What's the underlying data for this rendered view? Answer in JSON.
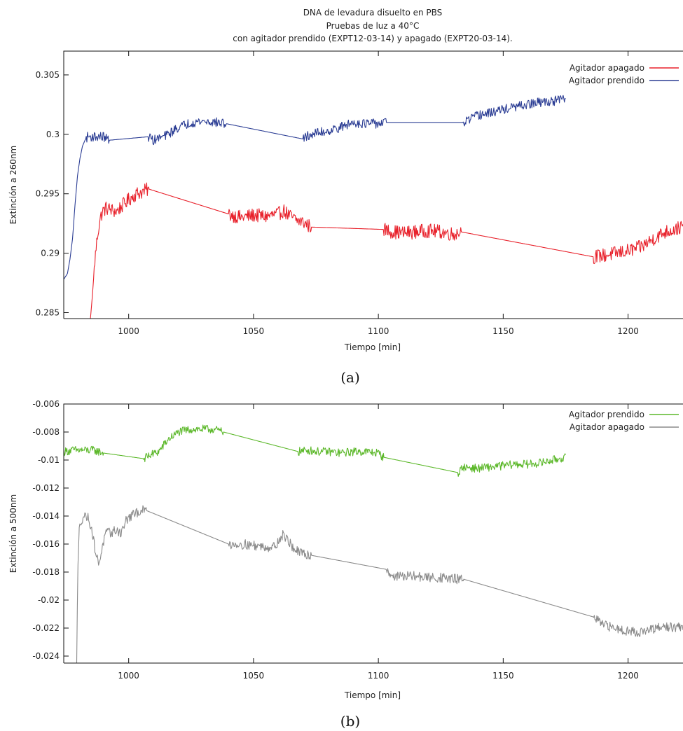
{
  "figure": {
    "title_lines": [
      "DNA de levadura disuelto en PBS",
      "Pruebas de luz a 40°C",
      "con agitador prendido (EXPT12-03-14) y apagado (EXPT20-03-14)."
    ],
    "caption_a": "(a)",
    "caption_b": "(b)"
  },
  "chart_data": [
    {
      "type": "line",
      "title": "DNA de levadura disuelto en PBS / Pruebas de luz a 40°C / con agitador prendido (EXPT12-03-14) y apagado (EXPT20-03-14).",
      "xlabel": "Tiempo [min]",
      "ylabel": "Extinción a 260nm",
      "xlim": [
        974,
        1222
      ],
      "ylim": [
        0.2845,
        0.307
      ],
      "xticks": [
        1000,
        1050,
        1100,
        1150,
        1200
      ],
      "xtick_labels": [
        "1000",
        "1050",
        "1100",
        "1150",
        "1200"
      ],
      "yticks": [
        0.285,
        0.29,
        0.295,
        0.3,
        0.305
      ],
      "ytick_labels": [
        "0.285",
        "0.29",
        "0.295",
        "0.3",
        "0.305"
      ],
      "legend_position": "top-right",
      "grid": false,
      "series": [
        {
          "name": "Agitador apagado",
          "color": "#e8202a",
          "noise": 0.0006,
          "x": [
            984.7,
            985.5,
            986.5,
            987.5,
            988.5,
            989.5,
            991,
            995,
            1000,
            1003,
            1006,
            1008,
            1040,
            1045,
            1050,
            1055,
            1060,
            1062,
            1064,
            1067,
            1070,
            1073,
            1102,
            1106,
            1110,
            1115,
            1120,
            1125,
            1130,
            1133,
            1186,
            1190,
            1195,
            1200,
            1205,
            1210,
            1215,
            1222
          ],
          "y": [
            0.2845,
            0.2865,
            0.2895,
            0.2915,
            0.2928,
            0.2935,
            0.2938,
            0.2935,
            0.2945,
            0.295,
            0.2952,
            0.2954,
            0.2933,
            0.293,
            0.2932,
            0.2931,
            0.2933,
            0.2936,
            0.2932,
            0.2928,
            0.2926,
            0.2922,
            0.292,
            0.2918,
            0.2917,
            0.2918,
            0.2919,
            0.2918,
            0.2916,
            0.2918,
            0.2897,
            0.2898,
            0.29,
            0.2902,
            0.2905,
            0.2912,
            0.2918,
            0.2922
          ],
          "noisy_ranges": [
            [
              986,
              1008
            ],
            [
              1040,
              1073
            ],
            [
              1102,
              1133
            ],
            [
              1186,
              1222
            ]
          ]
        },
        {
          "name": "Agitador prendido",
          "color": "#2b3d94",
          "noise": 0.0004,
          "x": [
            974,
            975.5,
            976.5,
            977.5,
            978.5,
            979.5,
            980.5,
            981.5,
            982.5,
            983.5,
            985,
            987,
            990,
            992,
            1008,
            1010,
            1015,
            1020,
            1025,
            1030,
            1035,
            1039,
            1070,
            1072,
            1075,
            1080,
            1085,
            1090,
            1095,
            1100,
            1103,
            1134,
            1137,
            1140,
            1145,
            1150,
            1155,
            1160,
            1165,
            1170,
            1175
          ],
          "y": [
            0.2878,
            0.2883,
            0.2895,
            0.2912,
            0.294,
            0.2965,
            0.298,
            0.299,
            0.2995,
            0.2998,
            0.2998,
            0.2998,
            0.2998,
            0.2995,
            0.2998,
            0.2995,
            0.2999,
            0.3006,
            0.301,
            0.3011,
            0.301,
            0.3009,
            0.2996,
            0.2999,
            0.3001,
            0.3003,
            0.3006,
            0.301,
            0.3009,
            0.3009,
            0.301,
            0.301,
            0.3013,
            0.3016,
            0.3018,
            0.3021,
            0.3023,
            0.3025,
            0.3027,
            0.3028,
            0.303
          ],
          "noisy_ranges": [
            [
              983,
              992
            ],
            [
              1008,
              1039
            ],
            [
              1070,
              1103
            ],
            [
              1134,
              1175
            ]
          ]
        }
      ]
    },
    {
      "type": "line",
      "xlabel": "Tiempo [min]",
      "ylabel": "Extinción a 500nm",
      "xlim": [
        974,
        1222
      ],
      "ylim": [
        -0.0245,
        -0.006
      ],
      "xticks": [
        1000,
        1050,
        1100,
        1150,
        1200
      ],
      "xtick_labels": [
        "1000",
        "1050",
        "1100",
        "1150",
        "1200"
      ],
      "yticks": [
        -0.024,
        -0.022,
        -0.02,
        -0.018,
        -0.016,
        -0.014,
        -0.012,
        -0.01,
        -0.008,
        -0.006
      ],
      "ytick_labels": [
        "-0.024",
        "-0.022",
        "-0.02",
        "-0.018",
        "-0.016",
        "-0.014",
        "-0.012",
        "-0.01",
        "-0.008",
        "-0.006"
      ],
      "legend_position": "top-right",
      "grid": false,
      "series": [
        {
          "name": "Agitador prendido",
          "color": "#5cb82a",
          "noise": 0.0003,
          "x": [
            974,
            978,
            982,
            986,
            990,
            1006,
            1008,
            1012,
            1016,
            1020,
            1025,
            1030,
            1034,
            1038,
            1068,
            1072,
            1076,
            1080,
            1085,
            1090,
            1095,
            1100,
            1102,
            1132,
            1134,
            1140,
            1145,
            1150,
            1155,
            1160,
            1165,
            1170,
            1175
          ],
          "y": [
            -0.0094,
            -0.0093,
            -0.0093,
            -0.0093,
            -0.0095,
            -0.0099,
            -0.0097,
            -0.0094,
            -0.0085,
            -0.008,
            -0.0078,
            -0.0078,
            -0.0078,
            -0.008,
            -0.0094,
            -0.0093,
            -0.0094,
            -0.0094,
            -0.0095,
            -0.0094,
            -0.0094,
            -0.0095,
            -0.0098,
            -0.0109,
            -0.0105,
            -0.0106,
            -0.0105,
            -0.0104,
            -0.0103,
            -0.0103,
            -0.0102,
            -0.01,
            -0.0098
          ],
          "noisy_ranges": [
            [
              974,
              990
            ],
            [
              1006,
              1038
            ],
            [
              1068,
              1102
            ],
            [
              1132,
              1175
            ]
          ]
        },
        {
          "name": "Agitador apagado",
          "color": "#8a8a8a",
          "noise": 0.00035,
          "x": [
            979.2,
            979.6,
            980.2,
            981,
            982,
            983,
            984,
            985,
            986,
            987,
            988,
            989,
            990,
            991,
            993,
            995,
            997,
            999,
            1001,
            1003,
            1005,
            1007,
            1040,
            1045,
            1050,
            1055,
            1058,
            1060,
            1062,
            1064,
            1066,
            1068,
            1070,
            1073,
            1103,
            1106,
            1110,
            1115,
            1120,
            1125,
            1130,
            1134,
            1186,
            1190,
            1195,
            1200,
            1205,
            1210,
            1215,
            1222
          ],
          "y": [
            -0.0245,
            -0.018,
            -0.015,
            -0.0143,
            -0.014,
            -0.014,
            -0.0142,
            -0.0148,
            -0.0158,
            -0.0168,
            -0.0174,
            -0.0166,
            -0.0158,
            -0.0152,
            -0.0152,
            -0.015,
            -0.0152,
            -0.0143,
            -0.014,
            -0.0138,
            -0.0136,
            -0.0136,
            -0.016,
            -0.016,
            -0.0161,
            -0.0162,
            -0.0162,
            -0.0158,
            -0.0153,
            -0.0158,
            -0.0163,
            -0.0166,
            -0.0167,
            -0.0168,
            -0.0178,
            -0.0183,
            -0.0183,
            -0.0183,
            -0.0184,
            -0.0184,
            -0.0185,
            -0.0185,
            -0.0212,
            -0.0218,
            -0.022,
            -0.0222,
            -0.0223,
            -0.0221,
            -0.0219,
            -0.022
          ],
          "noisy_ranges": [
            [
              980,
              1007
            ],
            [
              1040,
              1073
            ],
            [
              1103,
              1134
            ],
            [
              1186,
              1222
            ]
          ]
        }
      ]
    }
  ]
}
